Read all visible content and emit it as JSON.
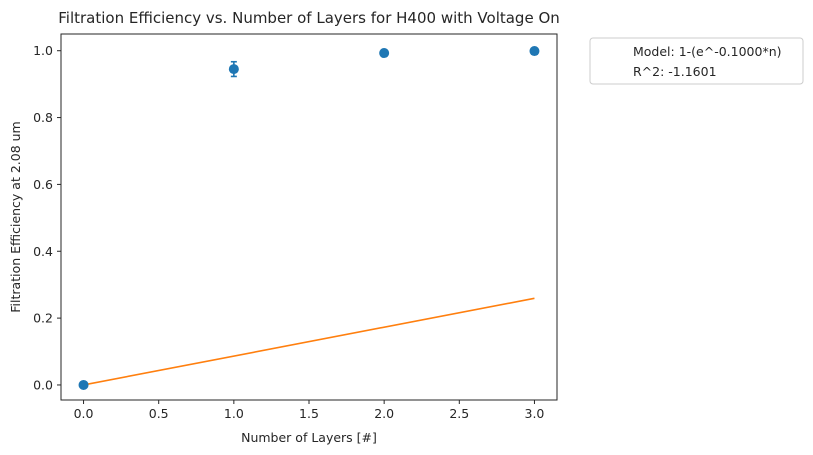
{
  "chart_data": {
    "type": "scatter",
    "title": "Filtration Efficiency vs. Number of Layers for H400 with Voltage On",
    "xlabel": "Number of Layers [#]",
    "ylabel": "Filtration Efficiency at 2.08 um",
    "xlim": [
      -0.15,
      3.15
    ],
    "ylim": [
      -0.045,
      1.05
    ],
    "x_ticks": [
      0.0,
      0.5,
      1.0,
      1.5,
      2.0,
      2.5,
      3.0
    ],
    "x_tick_labels": [
      "0.0",
      "0.5",
      "1.0",
      "1.5",
      "2.0",
      "2.5",
      "3.0"
    ],
    "y_ticks": [
      0.0,
      0.2,
      0.4,
      0.6,
      0.8,
      1.0
    ],
    "y_tick_labels": [
      "0.0",
      "0.2",
      "0.4",
      "0.6",
      "0.8",
      "1.0"
    ],
    "grid": false,
    "legend_position": "outside-top-right",
    "series": [
      {
        "kind": "scatter",
        "color": "#1f77b4",
        "x": [
          0,
          1,
          2,
          3
        ],
        "y": [
          0.0,
          0.945,
          0.993,
          0.999
        ],
        "yerr": [
          0.0,
          0.022,
          0.004,
          0.002
        ]
      },
      {
        "kind": "line",
        "color": "#ff7f0e",
        "x": [
          0,
          3
        ],
        "y": [
          0.0,
          0.2592
        ]
      }
    ],
    "legend": [
      {
        "label": "Model: 1-(e^-0.1000*n)"
      },
      {
        "label": "R^2: -1.1601"
      }
    ]
  }
}
